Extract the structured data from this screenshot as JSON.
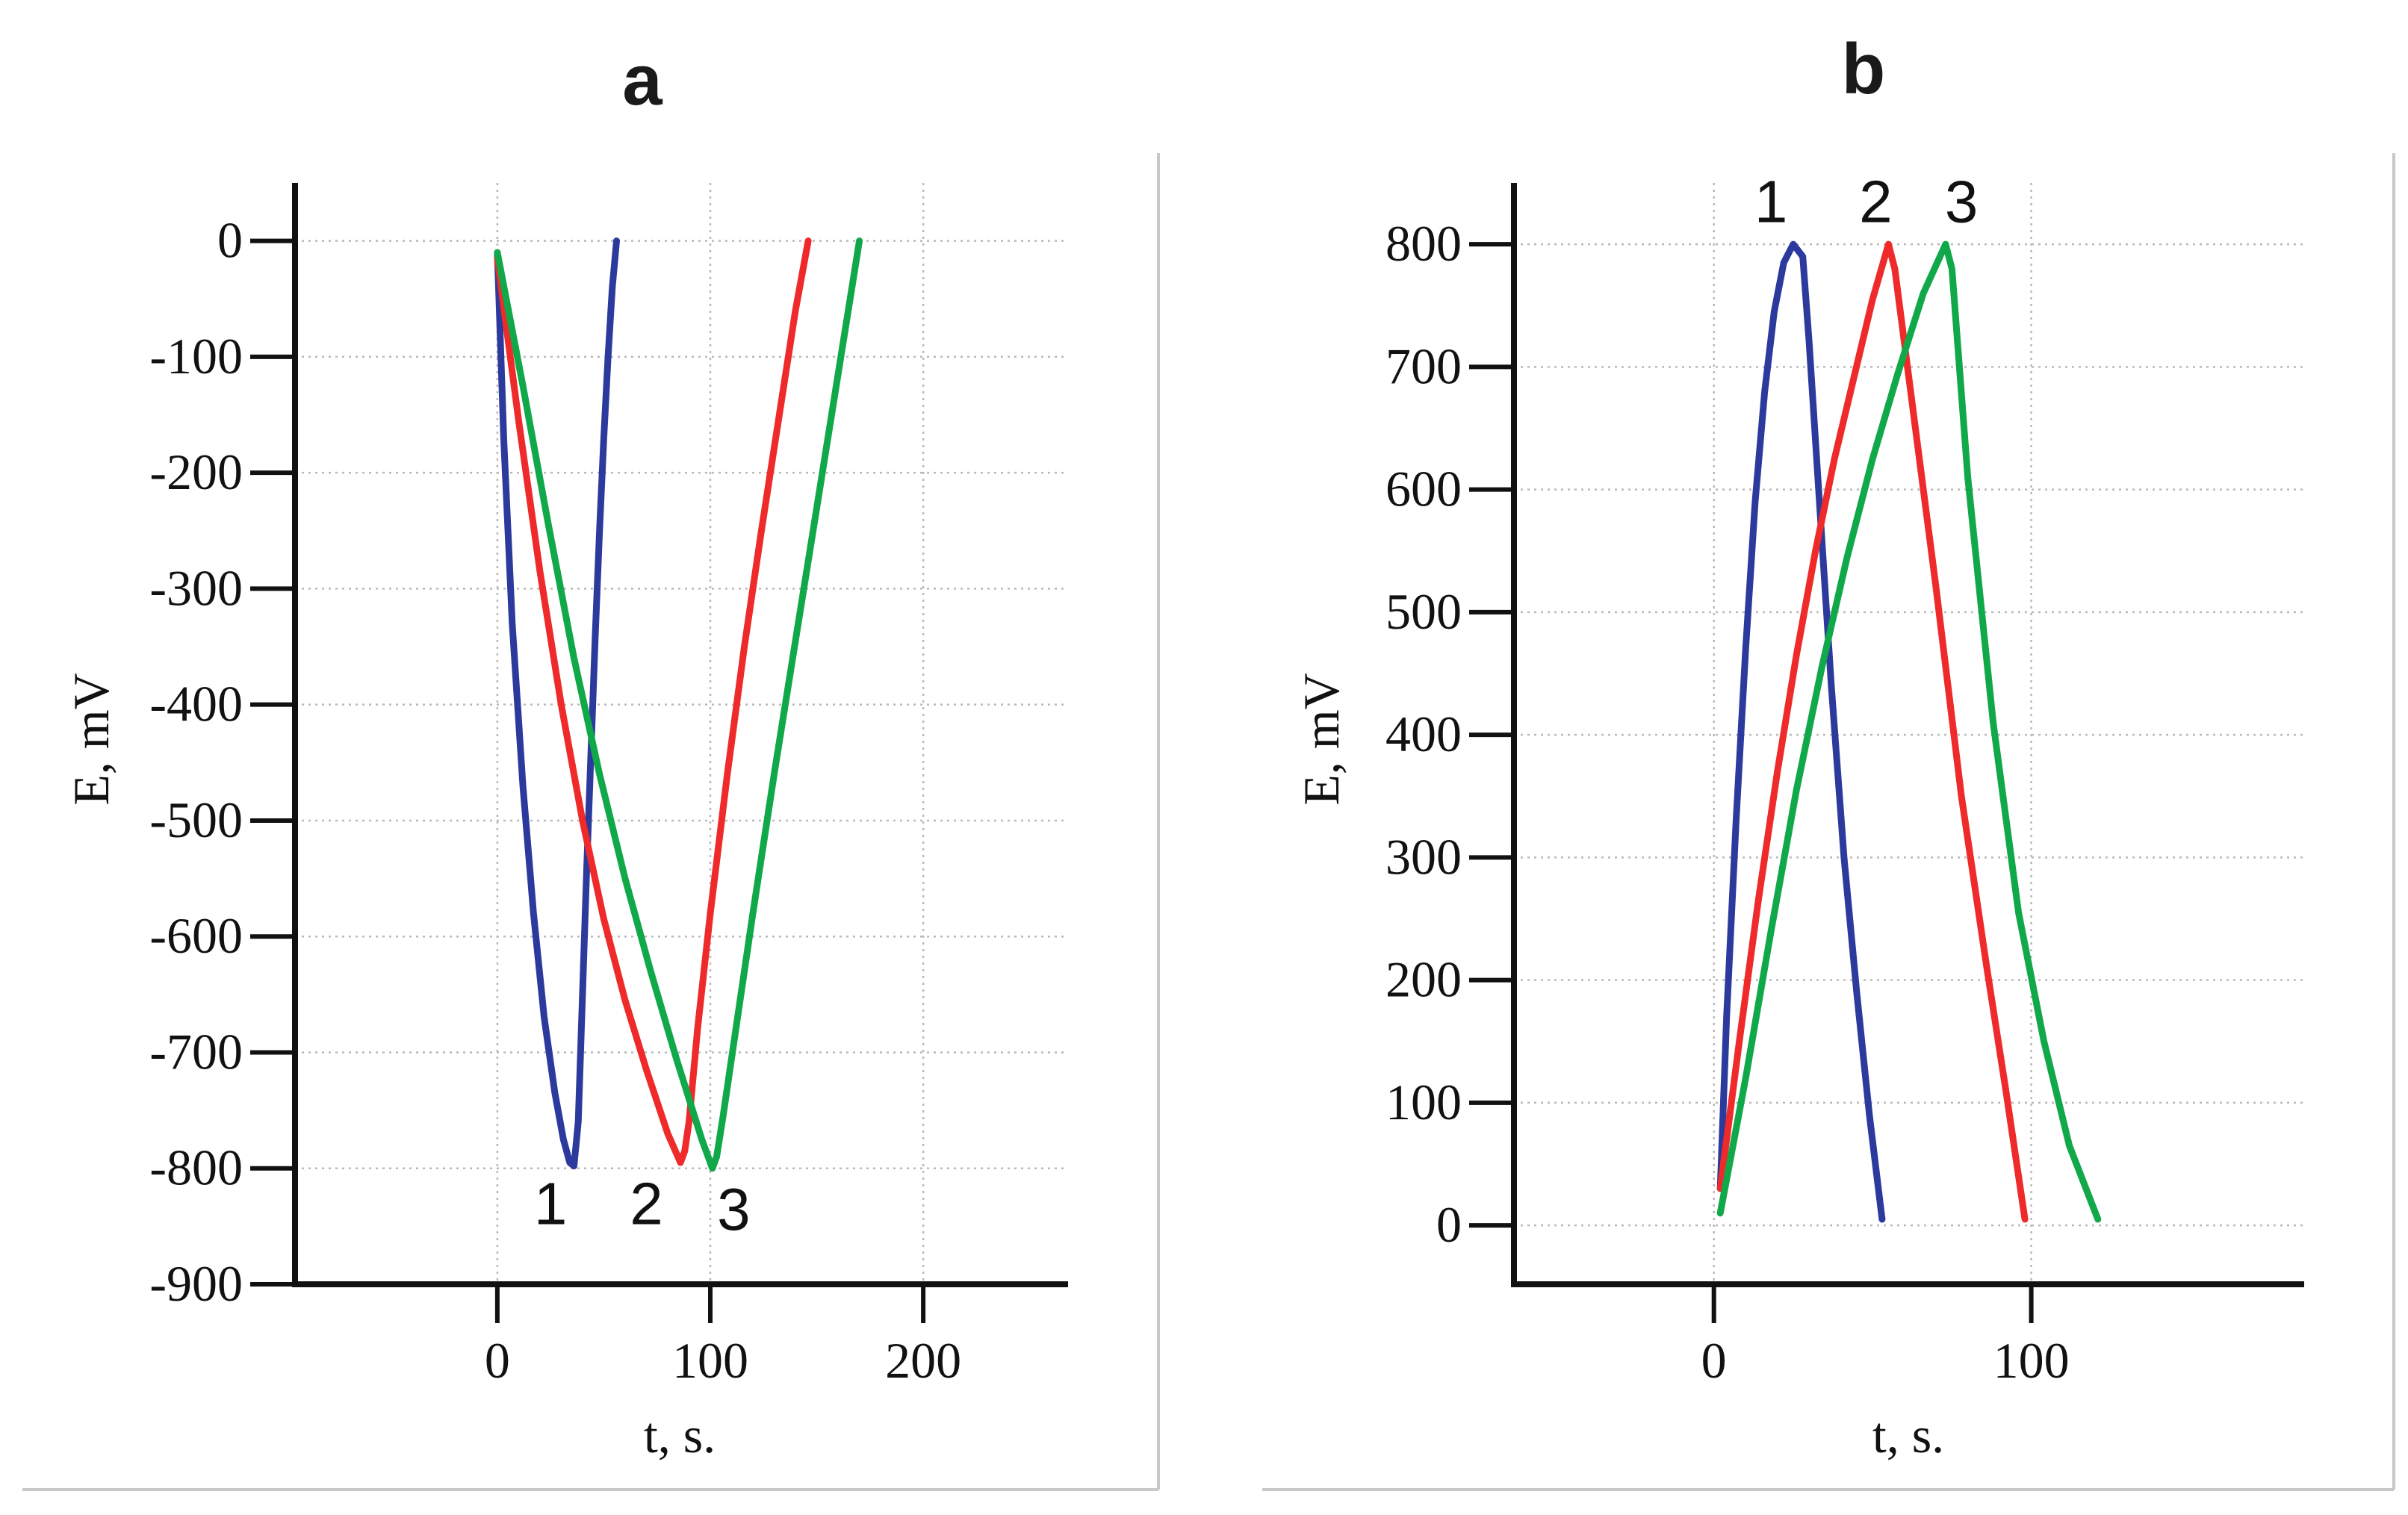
{
  "chart_data": [
    {
      "id": "a",
      "type": "line",
      "title": "a",
      "xlabel": "t, s.",
      "ylabel": "E, mV",
      "xlim": [
        -95,
        268
      ],
      "ylim": [
        -900,
        50
      ],
      "xticks": [
        0,
        100,
        200
      ],
      "xtick_labels": [
        "0",
        "100",
        "200"
      ],
      "yticks": [
        0,
        -100,
        -200,
        -300,
        -400,
        -500,
        -600,
        -700,
        -800,
        -900
      ],
      "ytick_labels": [
        "0",
        "-100",
        "-200",
        "-300",
        "-400",
        "-500",
        "-600",
        "-700",
        "-800",
        "-900"
      ],
      "grid": true,
      "series": [
        {
          "name": "1",
          "color": "#2b3a9c",
          "x": [
            0,
            3,
            7,
            12,
            17,
            22,
            27,
            31,
            34,
            36,
            38,
            40,
            42,
            44,
            46,
            48,
            50,
            52,
            54,
            56
          ],
          "y": [
            -10,
            -170,
            -330,
            -470,
            -580,
            -670,
            -735,
            -775,
            -795,
            -798,
            -760,
            -650,
            -540,
            -440,
            -340,
            -250,
            -170,
            -100,
            -40,
            0
          ]
        },
        {
          "name": "2",
          "color": "#ee2a2a",
          "x": [
            0,
            10,
            20,
            30,
            40,
            50,
            60,
            70,
            80,
            86,
            88,
            90,
            94,
            100,
            108,
            116,
            124,
            132,
            140,
            146
          ],
          "y": [
            -15,
            -155,
            -285,
            -400,
            -500,
            -585,
            -655,
            -715,
            -770,
            -795,
            -785,
            -760,
            -680,
            -580,
            -460,
            -350,
            -250,
            -155,
            -60,
            0
          ]
        },
        {
          "name": "3",
          "color": "#11a84a",
          "x": [
            0,
            12,
            24,
            36,
            48,
            60,
            72,
            84,
            96,
            101,
            103,
            106,
            112,
            120,
            130,
            140,
            150,
            160,
            170
          ],
          "y": [
            -10,
            -125,
            -245,
            -360,
            -460,
            -550,
            -630,
            -705,
            -775,
            -800,
            -790,
            -755,
            -680,
            -580,
            -460,
            -345,
            -230,
            -115,
            0
          ]
        }
      ],
      "curve_labels": [
        {
          "text": "1",
          "x": 25,
          "y": -830
        },
        {
          "text": "2",
          "x": 70,
          "y": -830
        },
        {
          "text": "3",
          "x": 111,
          "y": -835
        }
      ]
    },
    {
      "id": "b",
      "type": "line",
      "title": "b",
      "xlabel": "t, s.",
      "ylabel": "E, mV",
      "xlim": [
        -63,
        186
      ],
      "ylim": [
        -48,
        850
      ],
      "xticks": [
        0,
        100
      ],
      "xtick_labels": [
        "0",
        "100"
      ],
      "yticks": [
        0,
        100,
        200,
        300,
        400,
        500,
        600,
        700,
        800
      ],
      "ytick_labels": [
        "0",
        "100",
        "200",
        "300",
        "400",
        "500",
        "600",
        "700",
        "800"
      ],
      "grid": true,
      "series": [
        {
          "name": "1",
          "color": "#2b3a9c",
          "x": [
            2,
            4,
            7,
            10,
            13,
            16,
            19,
            22,
            25,
            28,
            30,
            33,
            37,
            41,
            45,
            49,
            53
          ],
          "y": [
            30,
            170,
            330,
            470,
            590,
            680,
            745,
            785,
            800,
            790,
            720,
            600,
            440,
            300,
            190,
            90,
            5
          ]
        },
        {
          "name": "2",
          "color": "#ee2a2a",
          "x": [
            2,
            8,
            14,
            20,
            26,
            32,
            38,
            44,
            50,
            55,
            57,
            62,
            70,
            78,
            86,
            92,
            98
          ],
          "y": [
            30,
            150,
            265,
            370,
            465,
            550,
            625,
            690,
            755,
            800,
            780,
            680,
            520,
            350,
            210,
            110,
            5
          ]
        },
        {
          "name": "3",
          "color": "#11a84a",
          "x": [
            2,
            10,
            18,
            26,
            34,
            42,
            50,
            58,
            66,
            73,
            75,
            80,
            88,
            96,
            104,
            112,
            121
          ],
          "y": [
            10,
            120,
            240,
            355,
            455,
            545,
            625,
            695,
            760,
            800,
            780,
            610,
            410,
            255,
            150,
            65,
            5
          ]
        }
      ],
      "curve_labels": [
        {
          "text": "1",
          "x": 18,
          "y": 835
        },
        {
          "text": "2",
          "x": 51,
          "y": 835
        },
        {
          "text": "3",
          "x": 78,
          "y": 835
        }
      ]
    }
  ]
}
